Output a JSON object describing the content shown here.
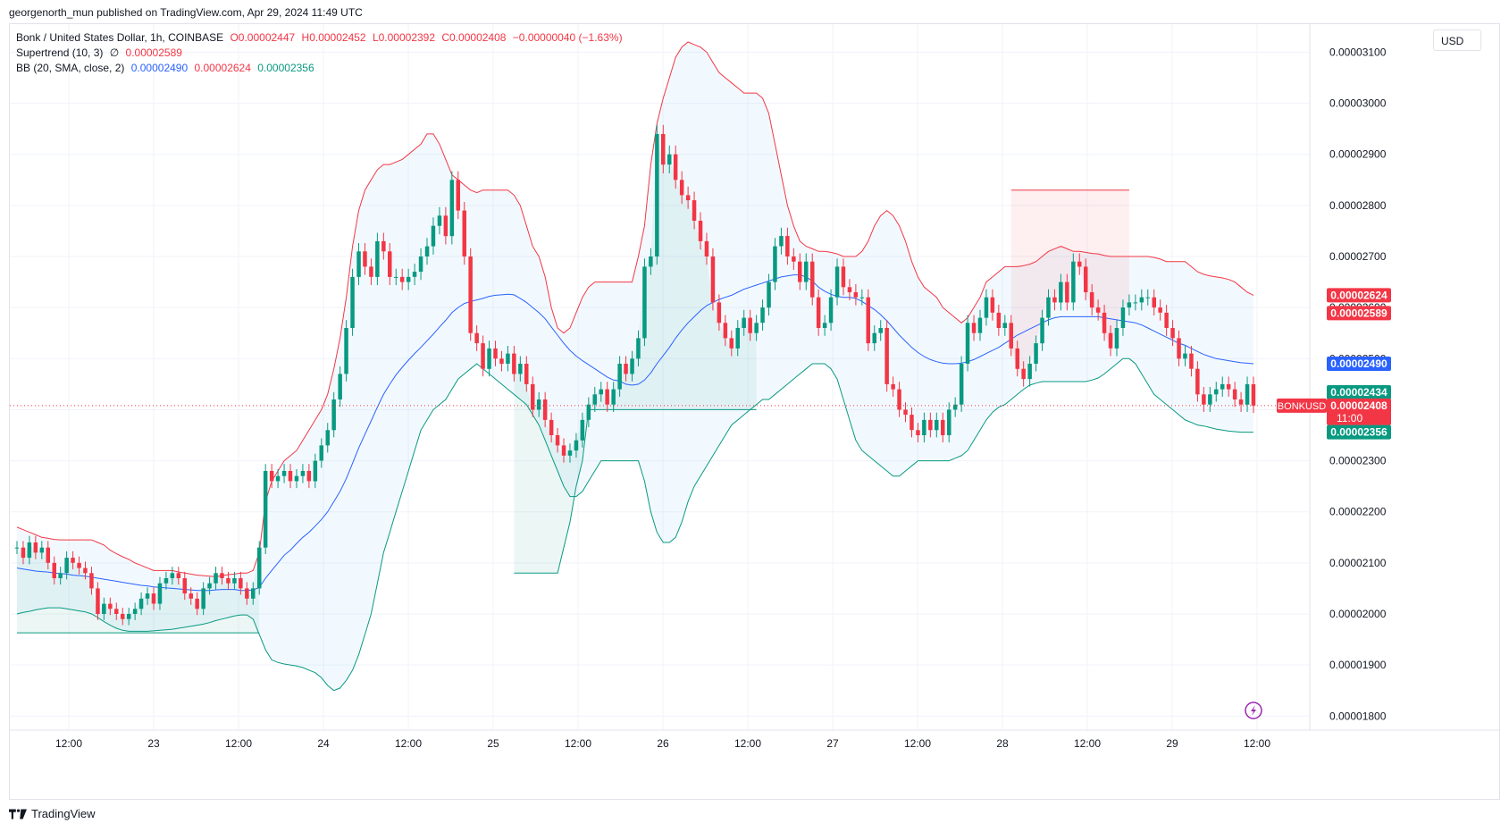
{
  "header": {
    "published": "georgenorth_mun published on TradingView.com, Apr 29, 2024 11:49 UTC"
  },
  "legend": {
    "symbol": "Bonk / United States Dollar, 1h, COINBASE",
    "open": "O0.00002447",
    "high": "H0.00002452",
    "low": "L0.00002392",
    "close": "C0.00002408",
    "change": "−0.00000040 (−1.63%)",
    "supertrend_label": "Supertrend (10, 3)",
    "supertrend_icon": "∅",
    "supertrend_value": "0.00002589",
    "bb_label": "BB (20, SMA, close, 2)",
    "bb_basis": "0.00002490",
    "bb_upper": "0.00002624",
    "bb_lower": "0.00002356"
  },
  "currency": "USD",
  "footer": {
    "brand": "TradingView"
  },
  "colors": {
    "up": "#089981",
    "down": "#f23645",
    "basis": "#2962ff",
    "upper": "#f23645",
    "lower": "#089981"
  },
  "chart_data": {
    "type": "candlestick",
    "symbol": "BONKUSD",
    "interval": "1h",
    "ylim": [
      1.7725e-05,
      3.155e-05
    ],
    "y_ticks": [
      "0.00001800",
      "0.00001900",
      "0.00002000",
      "0.00002100",
      "0.00002200",
      "0.00002300",
      "0.00002400",
      "0.00002500",
      "0.00002600",
      "0.00002700",
      "0.00002800",
      "0.00002900",
      "0.00003000",
      "0.00003100"
    ],
    "x_ticks": [
      "12:00",
      "23",
      "12:00",
      "24",
      "12:00",
      "25",
      "12:00",
      "26",
      "12:00",
      "27",
      "12:00",
      "28",
      "12:00",
      "29",
      "12:00"
    ],
    "last_price": 2.408e-05,
    "price_labels": [
      {
        "text": "0.00002624",
        "value": 2.624e-05,
        "color": "#f23645"
      },
      {
        "text": "0.00002589",
        "value": 2.589e-05,
        "color": "#f23645"
      },
      {
        "text": "0.00002490",
        "value": 2.49e-05,
        "color": "#2962ff"
      },
      {
        "text": "0.00002434",
        "value": 2.434e-05,
        "color": "#089981"
      },
      {
        "text": "0.00002408",
        "value": 2.408e-05,
        "color": "#f23645",
        "sub": "11:00"
      },
      {
        "text": "0.00002356",
        "value": 2.356e-05,
        "color": "#089981"
      }
    ],
    "symbol_tag": "BONKUSD",
    "close_series": [
      2.13e-05,
      2.11e-05,
      2.14e-05,
      2.12e-05,
      2.13e-05,
      2.1e-05,
      2.07e-05,
      2.08e-05,
      2.11e-05,
      2.1e-05,
      2.09e-05,
      2.08e-05,
      2.05e-05,
      2e-05,
      2.02e-05,
      2.01e-05,
      2e-05,
      1.99e-05,
      2e-05,
      2.01e-05,
      2.03e-05,
      2.04e-05,
      2.02e-05,
      2.06e-05,
      2.07e-05,
      2.08e-05,
      2.07e-05,
      2.04e-05,
      2.03e-05,
      2.01e-05,
      2.05e-05,
      2.06e-05,
      2.08e-05,
      2.07e-05,
      2.06e-05,
      2.07e-05,
      2.05e-05,
      2.03e-05,
      2.05e-05,
      2.13e-05,
      2.28e-05,
      2.26e-05,
      2.27e-05,
      2.28e-05,
      2.26e-05,
      2.27e-05,
      2.28e-05,
      2.26e-05,
      2.3e-05,
      2.33e-05,
      2.36e-05,
      2.42e-05,
      2.47e-05,
      2.56e-05,
      2.66e-05,
      2.71e-05,
      2.68e-05,
      2.66e-05,
      2.73e-05,
      2.71e-05,
      2.66e-05,
      2.66e-05,
      2.65e-05,
      2.66e-05,
      2.67e-05,
      2.7e-05,
      2.72e-05,
      2.76e-05,
      2.78e-05,
      2.74e-05,
      2.85e-05,
      2.79e-05,
      2.7e-05,
      2.55e-05,
      2.53e-05,
      2.48e-05,
      2.52e-05,
      2.5e-05,
      2.49e-05,
      2.51e-05,
      2.47e-05,
      2.49e-05,
      2.45e-05,
      2.4e-05,
      2.42e-05,
      2.38e-05,
      2.35e-05,
      2.33e-05,
      2.31e-05,
      2.32e-05,
      2.34e-05,
      2.38e-05,
      2.41e-05,
      2.43e-05,
      2.44e-05,
      2.41e-05,
      2.44e-05,
      2.49e-05,
      2.47e-05,
      2.5e-05,
      2.54e-05,
      2.68e-05,
      2.7e-05,
      2.94e-05,
      2.88e-05,
      2.9e-05,
      2.85e-05,
      2.82e-05,
      2.81e-05,
      2.77e-05,
      2.73e-05,
      2.7e-05,
      2.61e-05,
      2.57e-05,
      2.54e-05,
      2.52e-05,
      2.56e-05,
      2.58e-05,
      2.55e-05,
      2.57e-05,
      2.6e-05,
      2.65e-05,
      2.72e-05,
      2.74e-05,
      2.7e-05,
      2.69e-05,
      2.65e-05,
      2.69e-05,
      2.62e-05,
      2.56e-05,
      2.57e-05,
      2.62e-05,
      2.68e-05,
      2.64e-05,
      2.63e-05,
      2.62e-05,
      2.62e-05,
      2.53e-05,
      2.55e-05,
      2.56e-05,
      2.45e-05,
      2.44e-05,
      2.4e-05,
      2.39e-05,
      2.36e-05,
      2.35e-05,
      2.38e-05,
      2.36e-05,
      2.38e-05,
      2.35e-05,
      2.4e-05,
      2.41e-05,
      2.49e-05,
      2.57e-05,
      2.55e-05,
      2.58e-05,
      2.62e-05,
      2.59e-05,
      2.56e-05,
      2.57e-05,
      2.52e-05,
      2.48e-05,
      2.46e-05,
      2.49e-05,
      2.53e-05,
      2.58e-05,
      2.62e-05,
      2.61e-05,
      2.65e-05,
      2.61e-05,
      2.69e-05,
      2.68e-05,
      2.63e-05,
      2.6e-05,
      2.59e-05,
      2.55e-05,
      2.52e-05,
      2.56e-05,
      2.6e-05,
      2.61e-05,
      2.61e-05,
      2.62e-05,
      2.62e-05,
      2.6e-05,
      2.59e-05,
      2.56e-05,
      2.54e-05,
      2.5e-05,
      2.51e-05,
      2.48e-05,
      2.43e-05,
      2.41e-05,
      2.43e-05,
      2.44e-05,
      2.45e-05,
      2.44e-05,
      2.42e-05,
      2.41e-05,
      2.45e-05,
      2.408e-05
    ],
    "bb_upper_series": [
      2.17e-05,
      2.165e-05,
      2.16e-05,
      2.155e-05,
      2.15e-05,
      2.148e-05,
      2.146e-05,
      2.145e-05,
      2.145e-05,
      2.145e-05,
      2.145e-05,
      2.145e-05,
      2.145e-05,
      2.14e-05,
      2.135e-05,
      2.125e-05,
      2.118e-05,
      2.112e-05,
      2.107e-05,
      2.1e-05,
      2.095e-05,
      2.09e-05,
      2.085e-05,
      2.085e-05,
      2.085e-05,
      2.085e-05,
      2.082e-05,
      2.08e-05,
      2.078e-05,
      2.076e-05,
      2.075e-05,
      2.074e-05,
      2.073e-05,
      2.075e-05,
      2.077e-05,
      2.078e-05,
      2.08e-05,
      2.08e-05,
      2.085e-05,
      2.12e-05,
      2.22e-05,
      2.26e-05,
      2.28e-05,
      2.3e-05,
      2.31e-05,
      2.32e-05,
      2.34e-05,
      2.36e-05,
      2.38e-05,
      2.4e-05,
      2.43e-05,
      2.48e-05,
      2.54e-05,
      2.62e-05,
      2.72e-05,
      2.79e-05,
      2.83e-05,
      2.85e-05,
      2.87e-05,
      2.88e-05,
      2.88e-05,
      2.885e-05,
      2.89e-05,
      2.9e-05,
      2.91e-05,
      2.92e-05,
      2.94e-05,
      2.94e-05,
      2.92e-05,
      2.89e-05,
      2.86e-05,
      2.85e-05,
      2.84e-05,
      2.83e-05,
      2.825e-05,
      2.83e-05,
      2.83e-05,
      2.83e-05,
      2.83e-05,
      2.83e-05,
      2.82e-05,
      2.8e-05,
      2.76e-05,
      2.72e-05,
      2.7e-05,
      2.66e-05,
      2.6e-05,
      2.56e-05,
      2.55e-05,
      2.56e-05,
      2.59e-05,
      2.62e-05,
      2.64e-05,
      2.65e-05,
      2.65e-05,
      2.65e-05,
      2.65e-05,
      2.65e-05,
      2.65e-05,
      2.65e-05,
      2.7e-05,
      2.76e-05,
      2.88e-05,
      2.96e-05,
      3.01e-05,
      3.05e-05,
      3.09e-05,
      3.11e-05,
      3.12e-05,
      3.115e-05,
      3.11e-05,
      3.1e-05,
      3.08e-05,
      3.06e-05,
      3.05e-05,
      3.04e-05,
      3.03e-05,
      3.02e-05,
      3.02e-05,
      3.02e-05,
      3.01e-05,
      2.98e-05,
      2.92e-05,
      2.86e-05,
      2.8e-05,
      2.76e-05,
      2.73e-05,
      2.72e-05,
      2.715e-05,
      2.71e-05,
      2.71e-05,
      2.708e-05,
      2.705e-05,
      2.7e-05,
      2.7e-05,
      2.7e-05,
      2.71e-05,
      2.73e-05,
      2.76e-05,
      2.78e-05,
      2.79e-05,
      2.78e-05,
      2.76e-05,
      2.73e-05,
      2.69e-05,
      2.66e-05,
      2.64e-05,
      2.63e-05,
      2.62e-05,
      2.6e-05,
      2.59e-05,
      2.58e-05,
      2.57e-05,
      2.58e-05,
      2.6e-05,
      2.62e-05,
      2.65e-05,
      2.66e-05,
      2.67e-05,
      2.68e-05,
      2.68e-05,
      2.68e-05,
      2.682e-05,
      2.685e-05,
      2.69e-05,
      2.7e-05,
      2.71e-05,
      2.715e-05,
      2.72e-05,
      2.715e-05,
      2.71e-05,
      2.71e-05,
      2.708e-05,
      2.706e-05,
      2.705e-05,
      2.702e-05,
      2.7e-05,
      2.7e-05,
      2.7e-05,
      2.7e-05,
      2.7e-05,
      2.7e-05,
      2.7e-05,
      2.698e-05,
      2.695e-05,
      2.69e-05,
      2.69e-05,
      2.69e-05,
      2.69e-05,
      2.68e-05,
      2.67e-05,
      2.665e-05,
      2.662e-05,
      2.66e-05,
      2.658e-05,
      2.655e-05,
      2.65e-05,
      2.64e-05,
      2.63e-05,
      2.624e-05
    ],
    "bb_basis_series": [
      2.09e-05,
      2.088e-05,
      2.086e-05,
      2.084e-05,
      2.083e-05,
      2.082e-05,
      2.08e-05,
      2.079e-05,
      2.078e-05,
      2.076e-05,
      2.075e-05,
      2.074e-05,
      2.072e-05,
      2.07e-05,
      2.068e-05,
      2.066e-05,
      2.064e-05,
      2.062e-05,
      2.06e-05,
      2.058e-05,
      2.056e-05,
      2.055e-05,
      2.053e-05,
      2.052e-05,
      2.051e-05,
      2.05e-05,
      2.049e-05,
      2.048e-05,
      2.047e-05,
      2.046e-05,
      2.046e-05,
      2.046e-05,
      2.047e-05,
      2.048e-05,
      2.048e-05,
      2.048e-05,
      2.046e-05,
      2.046e-05,
      2.047e-05,
      2.052e-05,
      2.07e-05,
      2.085e-05,
      2.1e-05,
      2.115e-05,
      2.125e-05,
      2.138e-05,
      2.15e-05,
      2.16e-05,
      2.172e-05,
      2.185e-05,
      2.2e-05,
      2.22e-05,
      2.24e-05,
      2.265e-05,
      2.295e-05,
      2.325e-05,
      2.352e-05,
      2.378e-05,
      2.405e-05,
      2.43e-05,
      2.45e-05,
      2.468e-05,
      2.483e-05,
      2.497e-05,
      2.51e-05,
      2.522e-05,
      2.535e-05,
      2.548e-05,
      2.562e-05,
      2.575e-05,
      2.59e-05,
      2.6e-05,
      2.608e-05,
      2.612e-05,
      2.615e-05,
      2.618e-05,
      2.622e-05,
      2.624e-05,
      2.625e-05,
      2.626e-05,
      2.625e-05,
      2.618e-05,
      2.61e-05,
      2.6e-05,
      2.59e-05,
      2.578e-05,
      2.562e-05,
      2.546e-05,
      2.53e-05,
      2.516e-05,
      2.505e-05,
      2.496e-05,
      2.488e-05,
      2.48e-05,
      2.472e-05,
      2.464e-05,
      2.458e-05,
      2.456e-05,
      2.45e-05,
      2.448e-05,
      2.45e-05,
      2.458e-05,
      2.472e-05,
      2.49e-05,
      2.506e-05,
      2.522e-05,
      2.54e-05,
      2.556e-05,
      2.57e-05,
      2.582e-05,
      2.594e-05,
      2.604e-05,
      2.61e-05,
      2.616e-05,
      2.62e-05,
      2.624e-05,
      2.63e-05,
      2.636e-05,
      2.64e-05,
      2.644e-05,
      2.648e-05,
      2.652e-05,
      2.656e-05,
      2.66e-05,
      2.662e-05,
      2.664e-05,
      2.664e-05,
      2.66e-05,
      2.652e-05,
      2.64e-05,
      2.632e-05,
      2.626e-05,
      2.622e-05,
      2.62e-05,
      2.62e-05,
      2.618e-05,
      2.612e-05,
      2.604e-05,
      2.596e-05,
      2.586e-05,
      2.574e-05,
      2.56e-05,
      2.546e-05,
      2.534e-05,
      2.522e-05,
      2.512e-05,
      2.504e-05,
      2.498e-05,
      2.494e-05,
      2.491e-05,
      2.49e-05,
      2.49e-05,
      2.491e-05,
      2.494e-05,
      2.498e-05,
      2.504e-05,
      2.51e-05,
      2.516e-05,
      2.522e-05,
      2.53e-05,
      2.538e-05,
      2.546e-05,
      2.552e-05,
      2.558e-05,
      2.564e-05,
      2.57e-05,
      2.576e-05,
      2.58e-05,
      2.582e-05,
      2.582e-05,
      2.582e-05,
      2.582e-05,
      2.582e-05,
      2.582e-05,
      2.582e-05,
      2.58e-05,
      2.578e-05,
      2.576e-05,
      2.574e-05,
      2.572e-05,
      2.57e-05,
      2.566e-05,
      2.56e-05,
      2.554e-05,
      2.548e-05,
      2.542e-05,
      2.536e-05,
      2.53e-05,
      2.526e-05,
      2.52e-05,
      2.514e-05,
      2.508e-05,
      2.504e-05,
      2.5e-05,
      2.498e-05,
      2.496e-05,
      2.494e-05,
      2.492e-05,
      2.491e-05,
      2.49e-05
    ],
    "bb_lower_series": [
      2e-05,
      2.003e-05,
      2.005e-05,
      2.008e-05,
      2.01e-05,
      2.012e-05,
      2.012e-05,
      2.012e-05,
      2.01e-05,
      2.008e-05,
      2.006e-05,
      2.004e-05,
      2e-05,
      1.993e-05,
      1.985e-05,
      1.978e-05,
      1.972e-05,
      1.968e-05,
      1.966e-05,
      1.966e-05,
      1.966e-05,
      1.966e-05,
      1.967e-05,
      1.968e-05,
      1.969e-05,
      1.97e-05,
      1.972e-05,
      1.974e-05,
      1.976e-05,
      1.978e-05,
      1.98e-05,
      1.983e-05,
      1.987e-05,
      1.99e-05,
      1.993e-05,
      1.996e-05,
      1.998e-05,
      1.998e-05,
      1.99e-05,
      1.96e-05,
      1.93e-05,
      1.91e-05,
      1.905e-05,
      1.902e-05,
      1.9e-05,
      1.898e-05,
      1.895e-05,
      1.89e-05,
      1.885e-05,
      1.875e-05,
      1.86e-05,
      1.85e-05,
      1.855e-05,
      1.87e-05,
      1.89e-05,
      1.92e-05,
      1.96e-05,
      2e-05,
      2.06e-05,
      2.12e-05,
      2.16e-05,
      2.2e-05,
      2.24e-05,
      2.28e-05,
      2.32e-05,
      2.36e-05,
      2.38e-05,
      2.4e-05,
      2.41e-05,
      2.42e-05,
      2.44e-05,
      2.46e-05,
      2.47e-05,
      2.48e-05,
      2.49e-05,
      2.48e-05,
      2.47e-05,
      2.46e-05,
      2.45e-05,
      2.44e-05,
      2.43e-05,
      2.42e-05,
      2.41e-05,
      2.39e-05,
      2.37e-05,
      2.34e-05,
      2.31e-05,
      2.28e-05,
      2.25e-05,
      2.23e-05,
      2.23e-05,
      2.24e-05,
      2.26e-05,
      2.28e-05,
      2.3e-05,
      2.3e-05,
      2.3e-05,
      2.3e-05,
      2.3e-05,
      2.3e-05,
      2.3e-05,
      2.26e-05,
      2.2e-05,
      2.16e-05,
      2.14e-05,
      2.14e-05,
      2.15e-05,
      2.18e-05,
      2.22e-05,
      2.25e-05,
      2.27e-05,
      2.29e-05,
      2.31e-05,
      2.33e-05,
      2.35e-05,
      2.37e-05,
      2.38e-05,
      2.39e-05,
      2.4e-05,
      2.41e-05,
      2.42e-05,
      2.42e-05,
      2.43e-05,
      2.44e-05,
      2.45e-05,
      2.46e-05,
      2.47e-05,
      2.48e-05,
      2.49e-05,
      2.49e-05,
      2.49e-05,
      2.48e-05,
      2.46e-05,
      2.42e-05,
      2.38e-05,
      2.34e-05,
      2.32e-05,
      2.31e-05,
      2.3e-05,
      2.29e-05,
      2.28e-05,
      2.27e-05,
      2.27e-05,
      2.28e-05,
      2.29e-05,
      2.3e-05,
      2.3e-05,
      2.3e-05,
      2.3e-05,
      2.3e-05,
      2.3e-05,
      2.305e-05,
      2.31e-05,
      2.32e-05,
      2.34e-05,
      2.36e-05,
      2.38e-05,
      2.395e-05,
      2.405e-05,
      2.41e-05,
      2.42e-05,
      2.43e-05,
      2.44e-05,
      2.448e-05,
      2.452e-05,
      2.455e-05,
      2.455e-05,
      2.455e-05,
      2.455e-05,
      2.455e-05,
      2.455e-05,
      2.455e-05,
      2.455e-05,
      2.458e-05,
      2.462e-05,
      2.47e-05,
      2.48e-05,
      2.49e-05,
      2.5e-05,
      2.5e-05,
      2.49e-05,
      2.47e-05,
      2.45e-05,
      2.43e-05,
      2.42e-05,
      2.41e-05,
      2.4e-05,
      2.39e-05,
      2.38e-05,
      2.375e-05,
      2.37e-05,
      2.368e-05,
      2.365e-05,
      2.362e-05,
      2.36e-05,
      2.358e-05,
      2.357e-05,
      2.356e-05,
      2.356e-05,
      2.356e-05
    ],
    "supertrend_series": [
      {
        "dir": "up",
        "values": [
          1.963e-05,
          1.963e-05,
          1.963e-05,
          1.963e-05,
          1.963e-05,
          1.963e-05,
          1.963e-05,
          1.963e-05,
          1.963e-05,
          1.963e-05,
          1.963e-05,
          1.963e-05,
          1.963e-05,
          1.963e-05,
          1.963e-05,
          1.963e-05,
          1.963e-05,
          1.963e-05,
          1.963e-05,
          1.963e-05,
          1.963e-05,
          1.963e-05,
          1.963e-05,
          1.963e-05,
          1.963e-05,
          1.963e-05,
          1.963e-05,
          1.963e-05,
          1.963e-05,
          1.963e-05,
          1.963e-05,
          1.963e-05,
          1.963e-05,
          1.963e-05,
          1.963e-05,
          1.963e-05,
          1.963e-05,
          1.963e-05,
          1.963e-05,
          1.963e-05
        ]
      },
      {
        "dir": "up",
        "values": [
          2.08e-05,
          2.08e-05,
          2.08e-05,
          2.08e-05,
          2.08e-05,
          2.08e-05,
          2.08e-05,
          2.08e-05,
          2.13e-05,
          2.18e-05,
          2.25e-05,
          2.3e-05,
          2.4e-05,
          2.4e-05,
          2.4e-05,
          2.4e-05,
          2.4e-05,
          2.4e-05,
          2.4e-05,
          2.4e-05,
          2.4e-05,
          2.4e-05,
          2.4e-05,
          2.4e-05,
          2.4e-05,
          2.4e-05,
          2.4e-05,
          2.4e-05,
          2.4e-05,
          2.4e-05,
          2.4e-05,
          2.4e-05,
          2.4e-05,
          2.4e-05,
          2.4e-05,
          2.4e-05,
          2.4e-05,
          2.4e-05,
          2.4e-05,
          2.4e-05
        ]
      },
      {
        "dir": "down",
        "values": [
          2.83e-05,
          2.83e-05,
          2.83e-05,
          2.83e-05,
          2.83e-05,
          2.83e-05,
          2.83e-05,
          2.83e-05,
          2.83e-05,
          2.83e-05,
          2.83e-05,
          2.83e-05,
          2.83e-05,
          2.83e-05,
          2.83e-05,
          2.83e-05,
          2.83e-05,
          2.83e-05,
          2.83e-05,
          2.83e-05
        ]
      }
    ]
  }
}
